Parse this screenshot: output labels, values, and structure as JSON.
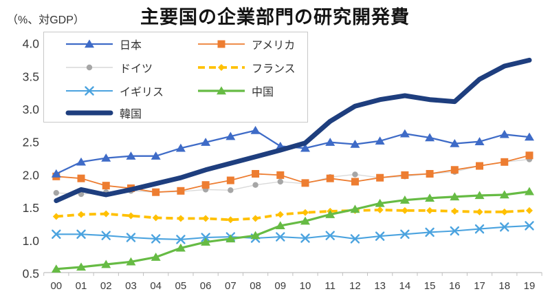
{
  "title": "主要国の企業部門の研究開発費",
  "y_axis_unit": "（%、対GDP）",
  "chart_data": {
    "type": "line",
    "title": "主要国の企業部門の研究開発費",
    "ylabel": "（%、対GDP）",
    "ylim": [
      0.5,
      4.0
    ],
    "grid": false,
    "legend_position": "top-left-box",
    "x_labels": [
      "00",
      "01",
      "02",
      "03",
      "04",
      "05",
      "06",
      "07",
      "08",
      "09",
      "10",
      "11",
      "12",
      "13",
      "14",
      "15",
      "16",
      "17",
      "18",
      "19"
    ],
    "y_tick_labels": [
      "4.0",
      "3.5",
      "3.0",
      "2.5",
      "2.0",
      "1.5",
      "1.0",
      "0.5"
    ],
    "series": [
      {
        "name": "日本",
        "color": "#3e6bc7",
        "marker": "triangle",
        "line_style": "solid",
        "values": [
          2.02,
          2.2,
          2.26,
          2.29,
          2.29,
          2.41,
          2.5,
          2.59,
          2.68,
          2.44,
          2.41,
          2.5,
          2.47,
          2.52,
          2.63,
          2.57,
          2.48,
          2.51,
          2.62,
          2.58
        ]
      },
      {
        "name": "アメリカ",
        "color": "#ed7d31",
        "marker": "square",
        "line_style": "solid",
        "values": [
          1.98,
          1.95,
          1.84,
          1.8,
          1.74,
          1.76,
          1.85,
          1.92,
          2.02,
          2.0,
          1.88,
          1.95,
          1.9,
          1.96,
          2.0,
          2.02,
          2.08,
          2.14,
          2.2,
          2.3
        ]
      },
      {
        "name": "ドイツ",
        "color": "#a6a6a6",
        "line_color": "#d9d9d9",
        "marker": "circle",
        "line_style": "solid",
        "values": [
          1.73,
          1.71,
          1.74,
          1.76,
          1.74,
          1.75,
          1.78,
          1.77,
          1.85,
          1.9,
          1.87,
          1.97,
          2.01,
          1.96,
          1.98,
          2.02,
          2.05,
          2.14,
          2.2,
          2.24
        ]
      },
      {
        "name": "フランス",
        "color": "#ffc000",
        "marker": "diamond",
        "line_style": "dashed",
        "values": [
          1.37,
          1.4,
          1.41,
          1.38,
          1.35,
          1.34,
          1.34,
          1.32,
          1.34,
          1.4,
          1.43,
          1.45,
          1.46,
          1.47,
          1.46,
          1.46,
          1.45,
          1.44,
          1.44,
          1.46
        ]
      },
      {
        "name": "イギリス",
        "color": "#4ba3df",
        "marker": "x",
        "line_style": "solid",
        "values": [
          1.1,
          1.1,
          1.08,
          1.05,
          1.03,
          1.02,
          1.05,
          1.06,
          1.04,
          1.06,
          1.04,
          1.08,
          1.03,
          1.07,
          1.1,
          1.13,
          1.15,
          1.18,
          1.21,
          1.23
        ]
      },
      {
        "name": "中国",
        "color": "#66bb44",
        "marker": "triangle",
        "line_style": "solid",
        "values": [
          0.57,
          0.6,
          0.64,
          0.68,
          0.75,
          0.89,
          0.98,
          1.03,
          1.08,
          1.23,
          1.3,
          1.4,
          1.48,
          1.57,
          1.62,
          1.65,
          1.67,
          1.69,
          1.7,
          1.75
        ]
      },
      {
        "name": "韓国",
        "color": "#1e3e7e",
        "marker": "none",
        "line_style": "solid-thick",
        "values": [
          1.61,
          1.78,
          1.7,
          1.78,
          1.87,
          1.96,
          2.08,
          2.18,
          2.28,
          2.38,
          2.49,
          2.82,
          3.05,
          3.15,
          3.21,
          3.15,
          3.12,
          3.46,
          3.66,
          3.75
        ]
      }
    ]
  }
}
